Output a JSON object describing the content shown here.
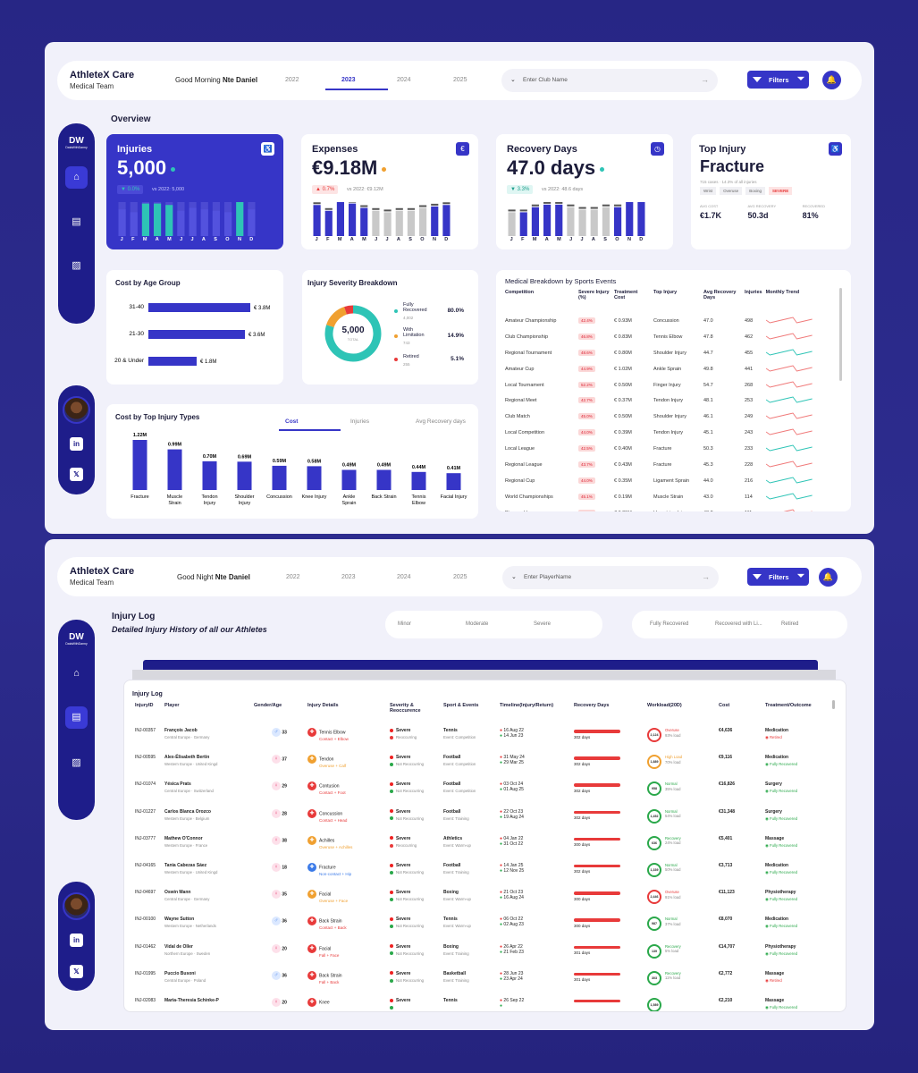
{
  "colors": {
    "accent": "#3635c7",
    "teal": "#2ec4b6",
    "red": "#e83a3a",
    "orange": "#f0a030",
    "gray": "#c9c9c9"
  },
  "app": {
    "name": "AthleteX Care",
    "team": "Medical Team"
  },
  "dash1": {
    "greeting": "Good Morning",
    "user": "Nte Daniel",
    "years": [
      "2022",
      "2023",
      "2024",
      "2025"
    ],
    "active_year": "2023",
    "search_placeholder": "Enter Club Name",
    "filters_label": "Filters",
    "section_title": "Overview",
    "kpis": [
      {
        "title": "Injuries",
        "value": "5,000",
        "chip": "▼ 0.0%",
        "vs": "vs 2022: 5,000"
      },
      {
        "title": "Expenses",
        "value": "€9.18M",
        "chip": "▲ 0.7%",
        "vs": "vs 2022: €9.12M"
      },
      {
        "title": "Recovery Days",
        "value": "47.0 days",
        "chip": "▼ 3.3%",
        "vs": "vs 2022: 48.6 days"
      }
    ],
    "months": [
      "J",
      "F",
      "M",
      "A",
      "M",
      "J",
      "J",
      "A",
      "S",
      "O",
      "N",
      "D"
    ],
    "top_injury": {
      "title": "Top Injury",
      "value": "Fracture",
      "note": "715 cases · 14.3% of all injuries",
      "tags": [
        "Wrist",
        "Overuse",
        "Boxing",
        "SEVERE"
      ],
      "stats": [
        {
          "label": "AVG COST",
          "value": "€1.7K"
        },
        {
          "label": "AVG RECOVERY",
          "value": "50.3d"
        },
        {
          "label": "RECOVERED",
          "value": "81%"
        }
      ]
    },
    "age_group": {
      "title": "Cost by Age Group",
      "rows": [
        {
          "label": "31-40",
          "value": "€ 3.8M"
        },
        {
          "label": "21-30",
          "value": "€ 3.6M"
        },
        {
          "label": "20 & Under",
          "value": "€ 1.8M"
        }
      ]
    },
    "severity": {
      "title": "Injury Severity Breakdown",
      "center_value": "5,000",
      "center_sub": "TOTAL",
      "rows": [
        {
          "label": "Fully Recovered",
          "count": "4,002",
          "pct": "80.0%"
        },
        {
          "label": "With Limitation",
          "count": "743",
          "pct": "14.9%"
        },
        {
          "label": "Retired",
          "count": "255",
          "pct": "5.1%"
        }
      ]
    },
    "cost_types": {
      "title": "Cost by Top Injury Types",
      "tabs": [
        "Cost",
        "Injuries",
        "Avg Recovery days"
      ]
    },
    "medical": {
      "title": "Medical Breakdown by Sports Events",
      "headers": [
        "Competition",
        "Severe Injury (%)",
        "Treatment Cost",
        "Top Injury",
        "Avg Recovery Days",
        "Injuries",
        "Monthly Trend"
      ],
      "rows": [
        [
          "Amateur Championship",
          "42.4%",
          "€ 0.93M",
          "Concussion",
          "47.0",
          "498"
        ],
        [
          "Club Championship",
          "46.8%",
          "€ 0.83M",
          "Tennis Elbow",
          "47.8",
          "462"
        ],
        [
          "Regional Tournament",
          "48.6%",
          "€ 0.80M",
          "Shoulder Injury",
          "44.7",
          "455"
        ],
        [
          "Amateur Cup",
          "44.9%",
          "€ 1.02M",
          "Ankle Sprain",
          "49.8",
          "441"
        ],
        [
          "Local Tournament",
          "52.2%",
          "€ 0.50M",
          "Finger Injury",
          "54.7",
          "268"
        ],
        [
          "Regional Meet",
          "42.7%",
          "€ 0.37M",
          "Tendon Injury",
          "48.1",
          "253"
        ],
        [
          "Club Match",
          "45.0%",
          "€ 0.50M",
          "Shoulder Injury",
          "46.1",
          "249"
        ],
        [
          "Local Competition",
          "44.0%",
          "€ 0.39M",
          "Tendon Injury",
          "45.1",
          "243"
        ],
        [
          "Local League",
          "42.5%",
          "€ 0.40M",
          "Fracture",
          "50.3",
          "233"
        ],
        [
          "Regional League",
          "43.7%",
          "€ 0.43M",
          "Fracture",
          "45.3",
          "228"
        ],
        [
          "Regional Cup",
          "44.0%",
          "€ 0.35M",
          "Ligament Sprain",
          "44.0",
          "216"
        ],
        [
          "World Championships",
          "45.1%",
          "€ 0.19M",
          "Muscle Strain",
          "43.0",
          "114"
        ],
        [
          "Diamond League",
          "43.2%",
          "€ 0.25M",
          "Hamstring Injury",
          "48.2",
          "111"
        ]
      ]
    }
  },
  "chart_data": [
    {
      "type": "bar",
      "title": "Injuries",
      "categories": [
        "J",
        "F",
        "M",
        "A",
        "M",
        "J",
        "J",
        "A",
        "S",
        "O",
        "N",
        "D"
      ],
      "values": [
        420,
        410,
        440,
        440,
        435,
        415,
        425,
        420,
        415,
        410,
        445,
        420
      ],
      "highlight": [
        false,
        false,
        true,
        true,
        true,
        false,
        false,
        false,
        false,
        false,
        true,
        false
      ]
    },
    {
      "type": "bar",
      "title": "Expenses",
      "categories": [
        "J",
        "F",
        "M",
        "A",
        "M",
        "J",
        "J",
        "A",
        "S",
        "O",
        "N",
        "D"
      ],
      "values": [
        0.8,
        0.76,
        0.82,
        0.81,
        0.78,
        0.76,
        0.75,
        0.76,
        0.76,
        0.78,
        0.79,
        0.8
      ],
      "highlight": [
        true,
        true,
        true,
        true,
        true,
        false,
        false,
        false,
        false,
        false,
        true,
        true
      ]
    },
    {
      "type": "bar",
      "title": "Recovery Days",
      "categories": [
        "J",
        "F",
        "M",
        "A",
        "M",
        "J",
        "J",
        "A",
        "S",
        "O",
        "N",
        "D"
      ],
      "values": [
        46,
        46,
        47,
        47.5,
        47.5,
        47,
        46.5,
        46.5,
        47,
        47,
        48,
        48
      ],
      "highlight": [
        false,
        true,
        true,
        true,
        true,
        false,
        false,
        false,
        false,
        true,
        true,
        true
      ]
    },
    {
      "type": "bar",
      "title": "Cost by Age Group",
      "orientation": "horizontal",
      "categories": [
        "31-40",
        "21-30",
        "20 & Under"
      ],
      "values": [
        3.8,
        3.6,
        1.8
      ],
      "unit": "€M"
    },
    {
      "type": "pie",
      "title": "Injury Severity Breakdown",
      "categories": [
        "Fully Recovered",
        "With Limitation",
        "Retired"
      ],
      "values": [
        4002,
        743,
        255
      ]
    },
    {
      "type": "bar",
      "title": "Cost by Top Injury Types",
      "categories": [
        "Fracture",
        "Muscle Strain",
        "Tendon Injury",
        "Shoulder Injury",
        "Concussion",
        "Knee Injury",
        "Ankle Sprain",
        "Back Strain",
        "Tennis Elbow",
        "Facial Injury"
      ],
      "values": [
        1.22,
        0.99,
        0.7,
        0.69,
        0.59,
        0.58,
        0.49,
        0.49,
        0.44,
        0.41
      ],
      "labels": [
        "1.22M",
        "0.99M",
        "0.70M",
        "0.69M",
        "0.59M",
        "0.58M",
        "0.49M",
        "0.49M",
        "0.44M",
        "0.41M"
      ],
      "unit": "M"
    }
  ],
  "dash2": {
    "greeting": "Good Night",
    "user": "Nte Daniel",
    "years": [
      "2022",
      "2023",
      "2024",
      "2025"
    ],
    "search_placeholder": "Enter PlayerName",
    "filters_label": "Filters",
    "title": "Injury Log",
    "subtitle": "Detailed Injury History of all our Athletes",
    "severity_filters": [
      "Minor",
      "Moderate",
      "Severe"
    ],
    "outcome_filters": [
      "Fully Recovered",
      "Recovered with Li...",
      "Retired"
    ],
    "log_title": "Injury Log",
    "headers": [
      "InjuryID",
      "Player",
      "Gender/Age",
      "Injury Details",
      "Severity & Reoccurence",
      "Sport & Events",
      "Timeline(Injury/Return)",
      "Recovery Days",
      "Workload(20D)",
      "Cost",
      "Treatment/Outcome"
    ],
    "rows": [
      {
        "id": "INJ-00357",
        "name": "François Jacob",
        "region": "Central Europe · Germany",
        "g": "♂",
        "age": "33",
        "inj": "Tennis Elbow",
        "cause": "Contact + Elbow",
        "ic": "#e83a3a",
        "sev": "Severe",
        "rec": "Reoccurring",
        "sport": "Tennis",
        "event": "Event: Competition",
        "d1": "16 Aug 22",
        "d2": "14 Jun 23",
        "days": "302 days",
        "wl": "2,124",
        "wst": "Overuse",
        "wload": "93% load",
        "wc": "#e83a3a",
        "cost": "€4,636",
        "treat": "Medication",
        "out": "Retired",
        "oc": "#e83a3a"
      },
      {
        "id": "INJ-00595",
        "name": "Alex-Élisabeth Bertin",
        "region": "Western Europe · United Kingd",
        "g": "♀",
        "age": "37",
        "inj": "Tendon",
        "cause": "Overuse + Calf",
        "ic": "#f0a030",
        "sev": "Severe",
        "rec": "Not Reoccurring",
        "sport": "Football",
        "event": "Event: Competition",
        "d1": "31 May 24",
        "d2": "29 Mar 25",
        "days": "302 days",
        "wl": "1,889",
        "wst": "High Load",
        "wload": "70% load",
        "wc": "#f0a030",
        "cost": "€9,116",
        "treat": "Medication",
        "out": "Fully Recovered",
        "oc": "#2aa84a"
      },
      {
        "id": "INJ-01074",
        "name": "Yésica Prats",
        "region": "Central Europe · Switzerland",
        "g": "♀",
        "age": "29",
        "inj": "Contusion",
        "cause": "Contact + Foot",
        "ic": "#e83a3a",
        "sev": "Severe",
        "rec": "Not Reoccurring",
        "sport": "Football",
        "event": "Event: Competition",
        "d1": "03 Oct 24",
        "d2": "01 Aug 25",
        "days": "302 days",
        "wl": "958",
        "wst": "Normal",
        "wload": "35% load",
        "wc": "#2aa84a",
        "cost": "€16,826",
        "treat": "Surgery",
        "out": "Fully Recovered",
        "oc": "#2aa84a"
      },
      {
        "id": "INJ-01227",
        "name": "Carlos Blanca Orozco",
        "region": "Western Europe · Belgium",
        "g": "♀",
        "age": "28",
        "inj": "Concussion",
        "cause": "Contact + Head",
        "ic": "#e83a3a",
        "sev": "Severe",
        "rec": "Not Reoccurring",
        "sport": "Football",
        "event": "Event: Training",
        "d1": "22 Oct 23",
        "d2": "19 Aug 24",
        "days": "302 days",
        "wl": "1,452",
        "wst": "Normal",
        "wload": "54% load",
        "wc": "#2aa84a",
        "cost": "€31,348",
        "treat": "Surgery",
        "out": "Fully Recovered",
        "oc": "#2aa84a"
      },
      {
        "id": "INJ-03777",
        "name": "Mathew O'Connor",
        "region": "Western Europe · France",
        "g": "♀",
        "age": "38",
        "inj": "Achilles",
        "cause": "Overuse + Achilles",
        "ic": "#f0a030",
        "sev": "Severe",
        "rec": "Reoccurring",
        "sport": "Athletics",
        "event": "Event: Warm-up",
        "d1": "04 Jan 22",
        "d2": "31 Oct 22",
        "days": "300 days",
        "wl": "636",
        "wst": "Recovery",
        "wload": "24% load",
        "wc": "#2aa84a",
        "cost": "€5,401",
        "treat": "Massage",
        "out": "Fully Recovered",
        "oc": "#2aa84a"
      },
      {
        "id": "INJ-04165",
        "name": "Tania Cabezas Sáez",
        "region": "Western Europe · United Kingd",
        "g": "♀",
        "age": "18",
        "inj": "Fracture",
        "cause": "Non-contact + Hip",
        "ic": "#3a7ae8",
        "sev": "Severe",
        "rec": "Not Reoccurring",
        "sport": "Football",
        "event": "Event: Training",
        "d1": "14 Jan 25",
        "d2": "12 Nov 25",
        "days": "302 days",
        "wl": "1,339",
        "wst": "Normal",
        "wload": "50% load",
        "wc": "#2aa84a",
        "cost": "€3,713",
        "treat": "Medication",
        "out": "Fully Recovered",
        "oc": "#2aa84a"
      },
      {
        "id": "INJ-04697",
        "name": "Oswin Mann",
        "region": "Central Europe · Germany",
        "g": "♀",
        "age": "35",
        "inj": "Facial",
        "cause": "Overuse + Face",
        "ic": "#f0a030",
        "sev": "Severe",
        "rec": "Not Reoccurring",
        "sport": "Boxing",
        "event": "Event: Warm-up",
        "d1": "21 Oct 23",
        "d2": "16 Aug 24",
        "days": "300 days",
        "wl": "2,446",
        "wst": "Overuse",
        "wload": "91% load",
        "wc": "#e83a3a",
        "cost": "€11,123",
        "treat": "Physiotherapy",
        "out": "Fully Recovered",
        "oc": "#2aa84a"
      },
      {
        "id": "INJ-00100",
        "name": "Wayne Sutton",
        "region": "Western Europe · Netherlands",
        "g": "♂",
        "age": "36",
        "inj": "Back Strain",
        "cause": "Contact + Back",
        "ic": "#e83a3a",
        "sev": "Severe",
        "rec": "Not Reoccurring",
        "sport": "Tennis",
        "event": "Event: Warm-up",
        "d1": "06 Oct 22",
        "d2": "02 Aug 23",
        "days": "300 days",
        "wl": "987",
        "wst": "Normal",
        "wload": "37% load",
        "wc": "#2aa84a",
        "cost": "€8,070",
        "treat": "Medication",
        "out": "Fully Recovered",
        "oc": "#2aa84a"
      },
      {
        "id": "INJ-01462",
        "name": "Vidal de Oller",
        "region": "Northern Europe · Sweden",
        "g": "♀",
        "age": "20",
        "inj": "Facial",
        "cause": "Fall + Face",
        "ic": "#e83a3a",
        "sev": "Severe",
        "rec": "Not Reoccurring",
        "sport": "Boxing",
        "event": "Event: Training",
        "d1": "26 Apr 22",
        "d2": "21 Feb 23",
        "days": "301 days",
        "wl": "139",
        "wst": "Recovery",
        "wload": "5% load",
        "wc": "#2aa84a",
        "cost": "€14,707",
        "treat": "Physiotherapy",
        "out": "Fully Recovered",
        "oc": "#2aa84a"
      },
      {
        "id": "INJ-01995",
        "name": "Puccio Busoni",
        "region": "Central Europe · Poland",
        "g": "♂",
        "age": "36",
        "inj": "Back Strain",
        "cause": "Fall + Back",
        "ic": "#e83a3a",
        "sev": "Severe",
        "rec": "Not Reoccurring",
        "sport": "Basketball",
        "event": "Event: Training",
        "d1": "28 Jun 23",
        "d2": "23 Apr 24",
        "days": "301 days",
        "wl": "303",
        "wst": "Recovery",
        "wload": "11% load",
        "wc": "#2aa84a",
        "cost": "€2,772",
        "treat": "Massage",
        "out": "Retired",
        "oc": "#e83a3a"
      },
      {
        "id": "INJ-02083",
        "name": "Maria-Theresia Schinke-P",
        "region": "",
        "g": "♀",
        "age": "20",
        "inj": "Knee",
        "cause": "",
        "ic": "#e83a3a",
        "sev": "Severe",
        "rec": "",
        "sport": "Tennis",
        "event": "",
        "d1": "26 Sep 22",
        "d2": "",
        "days": "",
        "wl": "1,589",
        "wst": "",
        "wload": "",
        "wc": "#2aa84a",
        "cost": "€2,210",
        "treat": "Massage",
        "out": "Fully Recovered",
        "oc": "#2aa84a"
      }
    ]
  }
}
